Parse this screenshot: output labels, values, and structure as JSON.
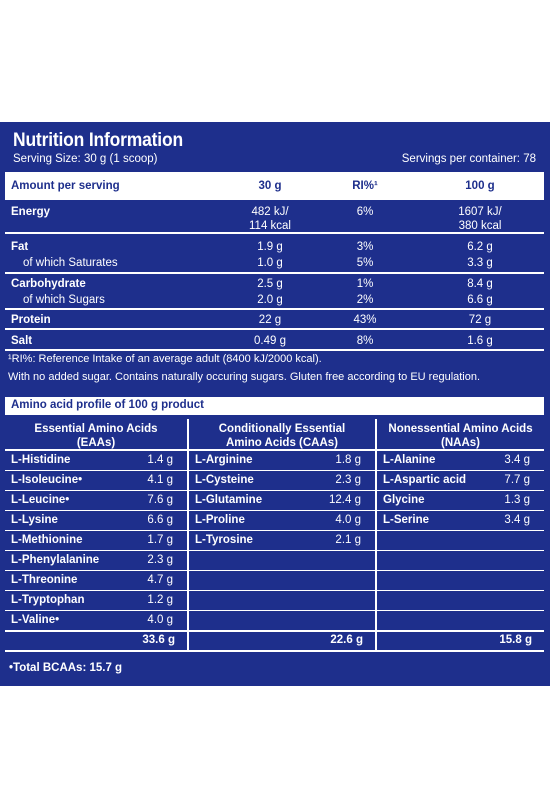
{
  "panel": {
    "title": "Nutrition Information",
    "serving_size": "Serving Size: 30 g (1 scoop)",
    "servings_per_container": "Servings per container: 78"
  },
  "nutrition": {
    "headers": [
      "Amount per serving",
      "30 g",
      "RI%¹",
      "100 g"
    ],
    "rows": [
      {
        "name": "Energy",
        "bold": true,
        "serving": "482 kJ/\n114 kcal",
        "ri": "6%",
        "per100": "1607 kJ/\n380 kcal"
      },
      {
        "name": "Fat",
        "bold": true,
        "serving": "1.9 g",
        "ri": "3%",
        "per100": "6.2 g"
      },
      {
        "name": "of which Saturates",
        "bold": false,
        "serving": "1.0 g",
        "ri": "5%",
        "per100": "3.3 g"
      },
      {
        "name": "Carbohydrate",
        "bold": true,
        "serving": "2.5 g",
        "ri": "1%",
        "per100": "8.4 g"
      },
      {
        "name": "of which Sugars",
        "bold": false,
        "serving": "2.0 g",
        "ri": "2%",
        "per100": "6.6 g"
      },
      {
        "name": "Protein",
        "bold": true,
        "serving": "22 g",
        "ri": "43%",
        "per100": "72 g"
      },
      {
        "name": "Salt",
        "bold": true,
        "serving": "0.49 g",
        "ri": "8%",
        "per100": "1.6 g"
      }
    ]
  },
  "footnotes": {
    "ri": "¹RI%: Reference Intake of an average adult (8400 kJ/2000 kcal).",
    "sugar": "With no added sugar. Contains naturally occuring sugars. Gluten free according to EU regulation."
  },
  "amino": {
    "title": "Amino acid profile of 100 g product",
    "columns": [
      {
        "header": [
          "Essential Amino Acids",
          "(EAAs)"
        ],
        "items": [
          {
            "name": "L-Histidine",
            "value": "1.4 g"
          },
          {
            "name": "L-Isoleucine•",
            "value": "4.1 g"
          },
          {
            "name": "L-Leucine•",
            "value": "7.6 g"
          },
          {
            "name": "L-Lysine",
            "value": "6.6 g"
          },
          {
            "name": "L-Methionine",
            "value": "1.7 g"
          },
          {
            "name": "L-Phenylalanine",
            "value": "2.3 g"
          },
          {
            "name": "L-Threonine",
            "value": "4.7 g"
          },
          {
            "name": "L-Tryptophan",
            "value": "1.2 g"
          },
          {
            "name": "L-Valine•",
            "value": "4.0 g"
          }
        ],
        "total": "33.6 g"
      },
      {
        "header": [
          "Conditionally Essential",
          "Amino Acids (CAAs)"
        ],
        "items": [
          {
            "name": "L-Arginine",
            "value": "1.8 g"
          },
          {
            "name": "L-Cysteine",
            "value": "2.3 g"
          },
          {
            "name": "L-Glutamine",
            "value": "12.4 g"
          },
          {
            "name": "L-Proline",
            "value": "4.0 g"
          },
          {
            "name": "L-Tyrosine",
            "value": "2.1 g"
          }
        ],
        "total": "22.6 g"
      },
      {
        "header": [
          "Nonessential Amino Acids",
          "(NAAs)"
        ],
        "items": [
          {
            "name": "L-Alanine",
            "value": "3.4 g"
          },
          {
            "name": "L-Aspartic acid",
            "value": "7.7 g"
          },
          {
            "name": "Glycine",
            "value": "1.3 g"
          },
          {
            "name": "L-Serine",
            "value": "3.4 g"
          }
        ],
        "total": "15.8 g"
      }
    ],
    "bcaa": "•Total BCAAs: 15.7 g"
  },
  "colors": {
    "panel": "#1e2f8c",
    "text": "#ffffff"
  }
}
